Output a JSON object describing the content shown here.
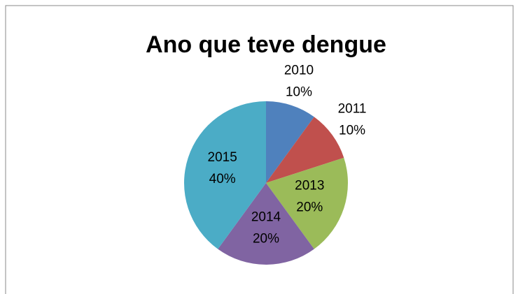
{
  "chart_data": {
    "type": "pie",
    "title": "Ano que teve dengue",
    "categories": [
      "2010",
      "2011",
      "2013",
      "2014",
      "2015"
    ],
    "values": [
      10,
      10,
      20,
      20,
      40
    ],
    "value_labels": [
      "10%",
      "10%",
      "20%",
      "20%",
      "40%"
    ],
    "colors": [
      "#4f81bd",
      "#c0504d",
      "#9bbb59",
      "#8064a2",
      "#4bacc6"
    ]
  }
}
